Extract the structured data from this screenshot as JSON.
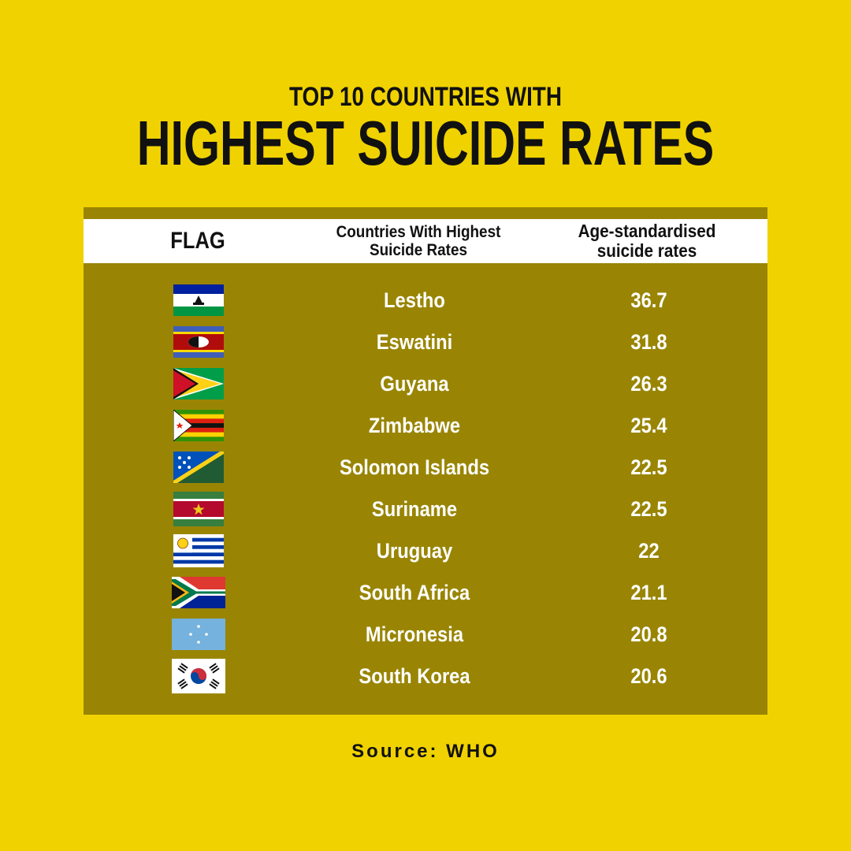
{
  "header": {
    "subtitle": "TOP 10 COUNTRIES WITH",
    "title": "HIGHEST SUICIDE RATES"
  },
  "table": {
    "columns": [
      "FLAG",
      "Countries With Highest Suicide Rates",
      "Age-standardised suicide rates"
    ]
  },
  "chart_data": {
    "type": "table",
    "title": "HIGHEST SUICIDE RATES",
    "columns": [
      "FLAG",
      "Countries With Highest Suicide Rates",
      "Age-standardised suicide rates"
    ],
    "rows": [
      {
        "country": "Lestho",
        "rate": "36.7",
        "flag": "lesotho-flag-icon"
      },
      {
        "country": "Eswatini",
        "rate": "31.8",
        "flag": "eswatini-flag-icon"
      },
      {
        "country": "Guyana",
        "rate": "26.3",
        "flag": "guyana-flag-icon"
      },
      {
        "country": "Zimbabwe",
        "rate": "25.4",
        "flag": "zimbabwe-flag-icon"
      },
      {
        "country": "Solomon Islands",
        "rate": "22.5",
        "flag": "solomon-islands-flag-icon"
      },
      {
        "country": "Suriname",
        "rate": "22.5",
        "flag": "suriname-flag-icon"
      },
      {
        "country": "Uruguay",
        "rate": "22",
        "flag": "uruguay-flag-icon"
      },
      {
        "country": "South Africa",
        "rate": "21.1",
        "flag": "south-africa-flag-icon"
      },
      {
        "country": "Micronesia",
        "rate": "20.8",
        "flag": "micronesia-flag-icon"
      },
      {
        "country": "South Korea",
        "rate": "20.6",
        "flag": "south-korea-flag-icon"
      }
    ]
  },
  "footer": {
    "source": "Source: WHO"
  },
  "colors": {
    "background": "#f0d200",
    "table": "#998503",
    "header_row": "#ffffff"
  }
}
